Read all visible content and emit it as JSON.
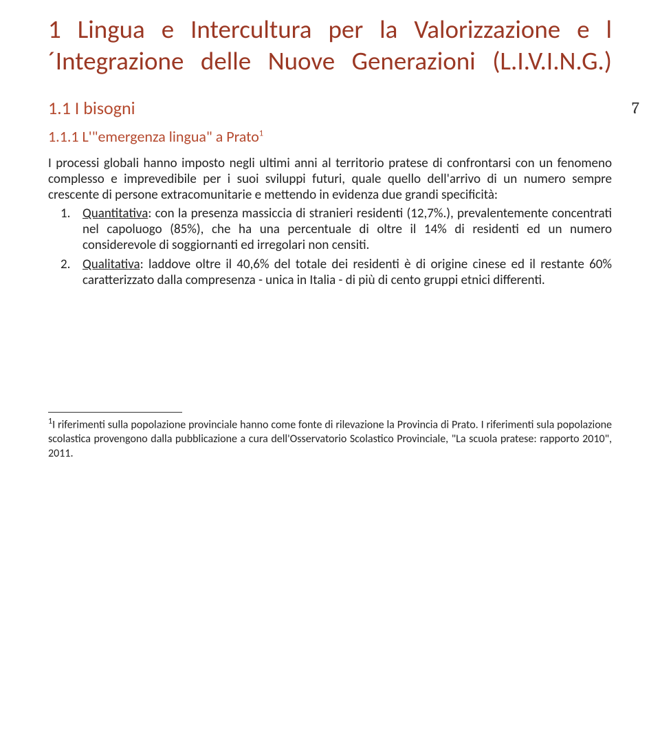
{
  "title": "1 Lingua e Intercultura per la Valorizzazione e l´Integrazione delle Nuove Generazioni (L.I.V.I.N.G.)",
  "page_number": "7",
  "subsection": "1.1  I bisogni",
  "subsubsection_prefix": "1.1.1  L'\"emergenza lingua\" a Prato",
  "subsubsection_sup": "1",
  "para1": "I processi globali hanno imposto negli ultimi anni al territorio pratese di confrontarsi con un fenomeno complesso e imprevedibile per i suoi sviluppi futuri, quale quello dell'arrivo di un numero sempre crescente di persone extracomunitarie e mettendo in evidenza due grandi specificità:",
  "item1_num": "1.",
  "item1_label": "Quantitativa",
  "item1_text": ": con la presenza massiccia di stranieri residenti (12,7%.), prevalentemente concentrati nel capoluogo (85%), che ha una percentuale di oltre il 14% di residenti ed un numero considerevole di soggiornanti ed irregolari non censiti.",
  "item2_num": "2.",
  "item2_label": "Qualitativa",
  "item2_text": ": laddove oltre il 40,6% del totale dei residenti è di origine cinese ed il restante 60% caratterizzato dalla compresenza - unica in Italia - di più di cento gruppi etnici differenti.",
  "footnote_sup": "1",
  "footnote_text": "I riferimenti sulla popolazione provinciale hanno come fonte di rilevazione la Provincia di Prato. I riferimenti sula popolazione scolastica provengono dalla pubblicazione a cura dell'Osservatorio Scolastico Provinciale, \"La scuola pratese: rapporto 2010\", 2011."
}
